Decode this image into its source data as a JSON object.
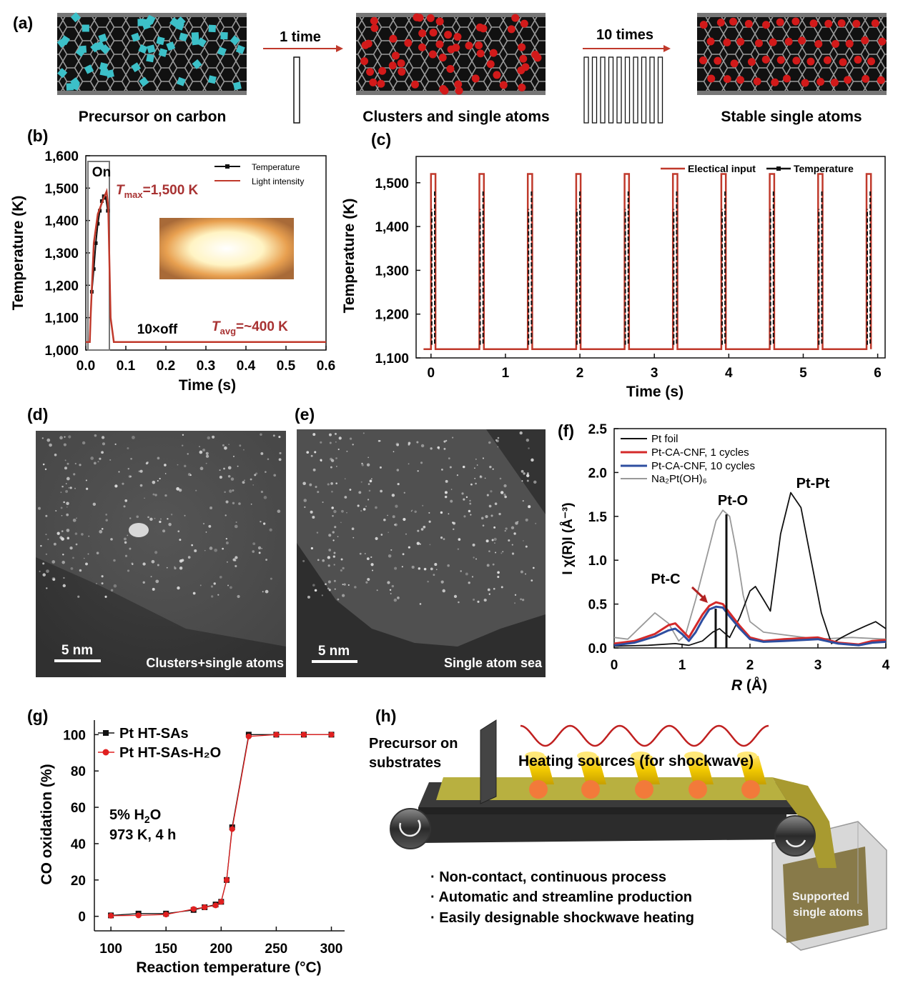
{
  "panel_a": {
    "label": "(a)",
    "step1_label": "1 time",
    "step2_label": "10 times",
    "captions": [
      "Precursor on carbon",
      "Clusters and single atoms",
      "Stable single atoms"
    ],
    "colors": {
      "precursor": "#3cc0c8",
      "atoms": "#d21a1a",
      "tube": "#111111"
    }
  },
  "panel_d": {
    "label": "(d)",
    "scale": "5 nm",
    "caption": "Clusters+single atoms"
  },
  "panel_e": {
    "label": "(e)",
    "scale": "5 nm",
    "caption": "Single atom sea"
  },
  "panel_h": {
    "label": "(h)",
    "precursor_label_1": "Precursor on",
    "precursor_label_2": "substrates",
    "heating_label": "Heating sources (for shockwave)",
    "bullets": [
      "· Non-contact, continuous process",
      "· Automatic and streamline production",
      "· Easily designable shockwave heating"
    ],
    "box_label_1": "Supported",
    "box_label_2": "single atoms"
  },
  "chart_data": [
    {
      "id": "b",
      "label": "(b)",
      "type": "line",
      "xlabel": "Time (s)",
      "ylabel": "Temperature (K)",
      "xlim": [
        0,
        0.6
      ],
      "ylim": [
        1000,
        1600
      ],
      "xticks": [
        "0.0",
        "0.1",
        "0.2",
        "0.3",
        "0.4",
        "0.5",
        "0.6"
      ],
      "yticks": [
        "1,000",
        "1,100",
        "1,200",
        "1,300",
        "1,400",
        "1,500",
        "1,600"
      ],
      "legend": [
        "Temperature",
        "Light intensity"
      ],
      "legend_position": "top-right",
      "annotations": {
        "on": "On",
        "off": "10×off",
        "tmax_sym": "T",
        "tmax_sub": "max",
        "tmax_val": "=1,500 K",
        "tavg_sym": "T",
        "tavg_sub": "avg",
        "tavg_val": "=~400 K"
      },
      "series": [
        {
          "name": "Temperature",
          "color": "#111111",
          "x": [
            0.015,
            0.02,
            0.025,
            0.03,
            0.035,
            0.04,
            0.045,
            0.05,
            0.055
          ],
          "y": [
            1180,
            1250,
            1330,
            1390,
            1430,
            1460,
            1475,
            1470,
            1430
          ]
        },
        {
          "name": "Light intensity",
          "color": "#c0392b",
          "x": [
            0,
            0.01,
            0.012,
            0.02,
            0.03,
            0.045,
            0.052,
            0.056,
            0.062,
            0.07,
            0.6
          ],
          "y": [
            1025,
            1025,
            1100,
            1330,
            1420,
            1470,
            1490,
            1440,
            1100,
            1025,
            1025
          ]
        }
      ]
    },
    {
      "id": "c",
      "label": "(c)",
      "type": "line",
      "xlabel": "Time (s)",
      "ylabel": "Temperature (K)",
      "xlim": [
        -0.2,
        6.1
      ],
      "ylim": [
        1100,
        1560
      ],
      "xticks": [
        "0",
        "1",
        "2",
        "3",
        "4",
        "5",
        "6"
      ],
      "yticks": [
        "1,100",
        "1,200",
        "1,300",
        "1,400",
        "1,500"
      ],
      "legend": [
        "Electical input",
        "Temperature"
      ],
      "legend_position": "top-right",
      "pulse_starts": [
        0,
        0.65,
        1.3,
        1.95,
        2.6,
        3.25,
        3.9,
        4.55,
        5.2,
        5.85
      ],
      "pulse_width": 0.06,
      "pulse_low": 1120,
      "pulse_high": 1520,
      "temp_low": 1130,
      "temp_high": 1480
    },
    {
      "id": "f",
      "label": "(f)",
      "type": "line",
      "xlabel_sym": "R",
      "xlabel_unit": " (Å)",
      "ylabel": "I χ(R)I (Å⁻³)",
      "xlim": [
        0,
        4
      ],
      "ylim": [
        0,
        2.5
      ],
      "xticks": [
        "0",
        "1",
        "2",
        "3",
        "4"
      ],
      "yticks": [
        "0.0",
        "0.5",
        "1.0",
        "1.5",
        "2.0",
        "2.5"
      ],
      "legend": [
        "Pt foil",
        "Pt-CA-CNF, 1 cycles",
        "Pt-CA-CNF, 10 cycles",
        "Na₂Pt(OH)₆"
      ],
      "legend_position": "top-left",
      "annotations": {
        "pto": "Pt-O",
        "ptpt": "Pt-Pt",
        "ptc": "Pt-C"
      },
      "series": [
        {
          "name": "Pt foil",
          "color": "#111111",
          "x": [
            0,
            0.5,
            0.9,
            1.1,
            1.3,
            1.45,
            1.55,
            1.7,
            1.85,
            2.0,
            2.08,
            2.2,
            2.3,
            2.45,
            2.6,
            2.75,
            2.9,
            3.05,
            3.2,
            3.35,
            3.5,
            3.7,
            3.85,
            4.0
          ],
          "y": [
            0.02,
            0.03,
            0.05,
            0.03,
            0.08,
            0.18,
            0.22,
            0.12,
            0.35,
            0.65,
            0.7,
            0.55,
            0.42,
            1.3,
            1.77,
            1.6,
            1.0,
            0.4,
            0.05,
            0.12,
            0.18,
            0.25,
            0.3,
            0.22
          ]
        },
        {
          "name": "Pt-CA-CNF, 1 cycles",
          "color": "#d42a2a",
          "x": [
            0,
            0.3,
            0.6,
            0.8,
            0.9,
            1.0,
            1.1,
            1.2,
            1.3,
            1.4,
            1.5,
            1.6,
            1.7,
            1.85,
            2.0,
            2.2,
            2.5,
            3.0,
            3.3,
            3.6,
            3.8,
            4.0
          ],
          "y": [
            0.05,
            0.08,
            0.16,
            0.26,
            0.28,
            0.2,
            0.12,
            0.25,
            0.38,
            0.48,
            0.52,
            0.5,
            0.4,
            0.25,
            0.12,
            0.08,
            0.1,
            0.12,
            0.06,
            0.04,
            0.08,
            0.09
          ]
        },
        {
          "name": "Pt-CA-CNF, 10 cycles",
          "color": "#2e4ea0",
          "x": [
            0,
            0.3,
            0.6,
            0.8,
            0.9,
            1.0,
            1.1,
            1.2,
            1.3,
            1.4,
            1.5,
            1.6,
            1.7,
            1.85,
            2.0,
            2.2,
            2.5,
            3.0,
            3.3,
            3.6,
            3.8,
            4.0
          ],
          "y": [
            0.03,
            0.06,
            0.13,
            0.2,
            0.22,
            0.16,
            0.08,
            0.18,
            0.32,
            0.44,
            0.47,
            0.46,
            0.36,
            0.22,
            0.1,
            0.07,
            0.08,
            0.1,
            0.05,
            0.03,
            0.06,
            0.07
          ]
        },
        {
          "name": "Na₂Pt(OH)₆",
          "color": "#999999",
          "x": [
            0,
            0.2,
            0.4,
            0.6,
            0.8,
            0.95,
            1.05,
            1.2,
            1.35,
            1.5,
            1.6,
            1.7,
            1.8,
            1.9,
            2.0,
            2.2,
            2.5,
            3.0,
            3.5,
            4.0
          ],
          "y": [
            0.12,
            0.1,
            0.25,
            0.4,
            0.28,
            0.08,
            0.15,
            0.55,
            1.0,
            1.45,
            1.57,
            1.5,
            1.1,
            0.6,
            0.3,
            0.18,
            0.15,
            0.1,
            0.12,
            0.1
          ]
        }
      ]
    },
    {
      "id": "g",
      "label": "(g)",
      "type": "line",
      "xlabel": "Reaction temperature (°C)",
      "ylabel": "CO oxidation (%)",
      "xlim": [
        85,
        312
      ],
      "ylim": [
        -8,
        108
      ],
      "xticks": [
        "100",
        "150",
        "200",
        "250",
        "300"
      ],
      "yticks": [
        "0",
        "20",
        "40",
        "60",
        "80",
        "100"
      ],
      "legend": [
        "Pt HT-SAs",
        "Pt HT-SAs-H₂O"
      ],
      "legend_position": "top-left",
      "annotations": {
        "cond1_pre": "5% H",
        "cond1_sub": "2",
        "cond1_post": "O",
        "cond2": "973 K, 4 h"
      },
      "series": [
        {
          "name": "Pt HT-SAs",
          "color": "#111111",
          "marker": "square",
          "x": [
            100,
            125,
            150,
            175,
            185,
            195,
            200,
            205,
            210,
            225,
            250,
            275,
            300
          ],
          "y": [
            0.5,
            1.5,
            1.5,
            3.5,
            5,
            6.5,
            8,
            20,
            49,
            100,
            100,
            100,
            100
          ]
        },
        {
          "name": "Pt HT-SAs-H₂O",
          "color": "#e02020",
          "marker": "circle",
          "x": [
            100,
            125,
            150,
            175,
            185,
            195,
            200,
            205,
            210,
            225,
            250,
            275,
            300
          ],
          "y": [
            0.3,
            0.5,
            1,
            4,
            5,
            6,
            8,
            20,
            48,
            99,
            100,
            100,
            100
          ]
        }
      ]
    }
  ]
}
